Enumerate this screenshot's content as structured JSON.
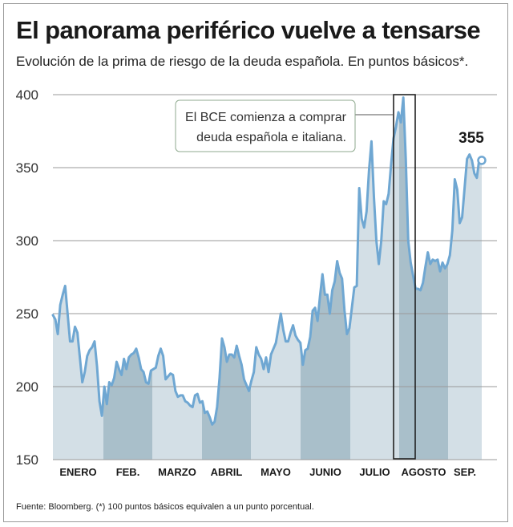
{
  "header": {
    "title": "El panorama periférico vuelve a tensarse",
    "subtitle": "Evolución de la prima de riesgo de la deuda española. En puntos básicos*."
  },
  "footnote": "Fuente: Bloomberg. (*) 100 puntos básicos equivalen a un punto porcentual.",
  "colors": {
    "line": "#6fa7d2",
    "fill_light": "#d3dfe6",
    "fill_dark": "#a9bfca",
    "grid": "#9a9a9a"
  },
  "chart_data": {
    "type": "area",
    "title": "El panorama periférico vuelve a tensarse",
    "subtitle": "Evolución de la prima de riesgo de la deuda española. En puntos básicos*.",
    "ylim": [
      150,
      400
    ],
    "yticks": [
      150,
      200,
      250,
      300,
      350,
      400
    ],
    "grid": "horizontal",
    "months": [
      "ENERO",
      "FEB.",
      "MARZO",
      "ABRIL",
      "MAYO",
      "JUNIO",
      "JULIO",
      "AGOSTO",
      "SEP."
    ],
    "month_shading": [
      "light",
      "dark",
      "light",
      "dark",
      "light",
      "dark",
      "light",
      "dark",
      "light"
    ],
    "annotation": {
      "lines": [
        "El BCE comienza a comprar",
        "deuda española e italiana."
      ],
      "highlight_month": "AGOSTO"
    },
    "end_label": "355",
    "series": [
      {
        "values": [
          249,
          246,
          236,
          256,
          263,
          269,
          250,
          231,
          231,
          241,
          237,
          220,
          203,
          210,
          221,
          225,
          227,
          231,
          214,
          190,
          180,
          200,
          188,
          203,
          201,
          206,
          217,
          212,
          208,
          219,
          212,
          220,
          222,
          223,
          226,
          220,
          212,
          210,
          203,
          202,
          211,
          212,
          213,
          221,
          226,
          221,
          205,
          207,
          209,
          208,
          197,
          193,
          194,
          194,
          190,
          189,
          187,
          186,
          194,
          195,
          189,
          190,
          182,
          183,
          179,
          174,
          176,
          186,
          206,
          233,
          227,
          217,
          222,
          222,
          220,
          228,
          221,
          215,
          205,
          201,
          197,
          204,
          210,
          227,
          222,
          219,
          212,
          220,
          210,
          222,
          226,
          230,
          240,
          250,
          239,
          231,
          231,
          237,
          242,
          235,
          232,
          230,
          215,
          225,
          226,
          234,
          252,
          254,
          245,
          262,
          277,
          263,
          263,
          250,
          266,
          272,
          286,
          278,
          274,
          252,
          236,
          240,
          254,
          268,
          269,
          336,
          315,
          309,
          320,
          348,
          368,
          330,
          300,
          284,
          300,
          327,
          325,
          332,
          352,
          370,
          378,
          388,
          381,
          398,
          356,
          300,
          285,
          276,
          267,
          267,
          266,
          271,
          282,
          292,
          284,
          287,
          286,
          287,
          279,
          285,
          281,
          284,
          290,
          307,
          342,
          335,
          312,
          316,
          336,
          356,
          359,
          355,
          346,
          343,
          356,
          355
        ]
      }
    ]
  }
}
